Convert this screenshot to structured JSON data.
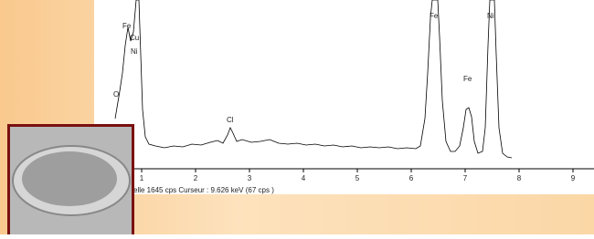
{
  "spectrum": {
    "peak_labels": [
      "Fe",
      "Cu",
      "Ni",
      "O",
      "Cl",
      "Fe",
      "Fe",
      "Ni"
    ],
    "x_ticks": [
      "1",
      "2",
      "3",
      "4",
      "5",
      "6",
      "7",
      "8",
      "9"
    ],
    "status": "elle 1645 cps   Curseur : 9.626 keV  (67 cps )"
  }
}
